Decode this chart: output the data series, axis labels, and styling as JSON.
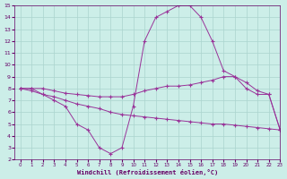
{
  "xlabel": "Windchill (Refroidissement éolien,°C)",
  "background_color": "#cceee8",
  "grid_color": "#aad4ce",
  "line_color": "#993399",
  "x_values": [
    0,
    1,
    2,
    3,
    4,
    5,
    6,
    7,
    8,
    9,
    10,
    11,
    12,
    13,
    14,
    15,
    16,
    17,
    18,
    19,
    20,
    21,
    22,
    23
  ],
  "series1": [
    8.0,
    8.0,
    7.5,
    7.0,
    6.5,
    5.0,
    4.5,
    3.0,
    2.5,
    3.0,
    6.5,
    12.0,
    14.0,
    14.5,
    15.0,
    15.0,
    14.0,
    12.0,
    9.5,
    9.0,
    8.0,
    7.5,
    7.5,
    4.5
  ],
  "series2": [
    8.0,
    8.0,
    8.0,
    7.8,
    7.6,
    7.5,
    7.4,
    7.3,
    7.3,
    7.3,
    7.5,
    7.8,
    8.0,
    8.2,
    8.2,
    8.3,
    8.5,
    8.7,
    9.0,
    9.0,
    8.5,
    7.8,
    7.5,
    4.5
  ],
  "series3": [
    8.0,
    7.8,
    7.5,
    7.3,
    7.0,
    6.7,
    6.5,
    6.3,
    6.0,
    5.8,
    5.7,
    5.6,
    5.5,
    5.4,
    5.3,
    5.2,
    5.1,
    5.0,
    5.0,
    4.9,
    4.8,
    4.7,
    4.6,
    4.5
  ],
  "ylim": [
    2,
    15
  ],
  "xlim": [
    -0.5,
    23
  ],
  "yticks": [
    2,
    3,
    4,
    5,
    6,
    7,
    8,
    9,
    10,
    11,
    12,
    13,
    14,
    15
  ],
  "xticks": [
    0,
    1,
    2,
    3,
    4,
    5,
    6,
    7,
    8,
    9,
    10,
    11,
    12,
    13,
    14,
    15,
    16,
    17,
    18,
    19,
    20,
    21,
    22,
    23
  ],
  "tick_color": "#660066",
  "spine_color": "#660066",
  "label_fontsize": 4.5,
  "xlabel_fontsize": 5.0
}
